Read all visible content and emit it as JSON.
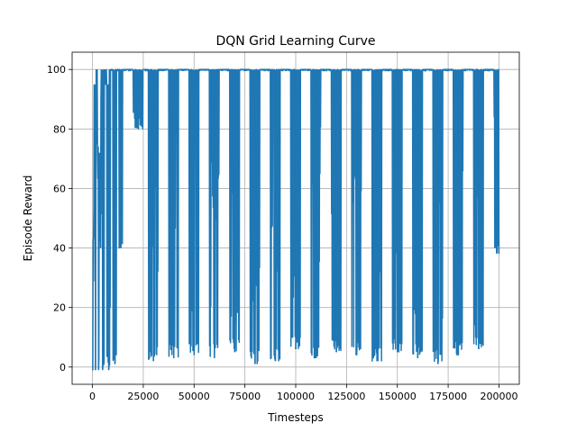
{
  "chart_data": {
    "type": "line",
    "title": "DQN Grid Learning Curve",
    "xlabel": "Timesteps",
    "ylabel": "Episode Reward",
    "xlim": [
      -10000,
      210000
    ],
    "ylim": [
      -5.8,
      105.8
    ],
    "grid": true,
    "x_ticks": [
      0,
      25000,
      50000,
      75000,
      100000,
      125000,
      150000,
      175000,
      200000
    ],
    "x_tick_labels": [
      "0",
      "25000",
      "50000",
      "75000",
      "100000",
      "125000",
      "150000",
      "175000",
      "200000"
    ],
    "y_ticks": [
      0,
      20,
      40,
      60,
      80,
      100
    ],
    "y_tick_labels": [
      "0",
      "20",
      "40",
      "60",
      "80",
      "100"
    ],
    "series": [
      {
        "color": "#1f77b4",
        "x": [
          0,
          500,
          1000,
          1500,
          2000,
          2500,
          3000,
          3500,
          4000,
          4500,
          5000,
          6000,
          7000,
          8000,
          9000,
          10000,
          11000,
          12000,
          13000,
          14000,
          15000,
          16000,
          17000,
          18000,
          19000,
          20000,
          22500,
          25000,
          27500,
          30000,
          32500,
          35000,
          37500,
          40000,
          42500,
          45000,
          47500,
          50000,
          52500,
          55000,
          57500,
          60000,
          62500,
          65000,
          67500,
          70000,
          72500,
          75000,
          77500,
          80000,
          82500,
          85000,
          87500,
          90000,
          92500,
          95000,
          97500,
          100000,
          102500,
          105000,
          107500,
          110000,
          112500,
          115000,
          117500,
          120000,
          122500,
          125000,
          127500,
          130000,
          132500,
          135000,
          137500,
          140000,
          142500,
          145000,
          147500,
          150000,
          152500,
          155000,
          157500,
          160000,
          162500,
          165000,
          167500,
          170000,
          172500,
          175000,
          177500,
          180000,
          182500,
          185000,
          187500,
          190000,
          192500,
          195000,
          197500,
          200000
        ],
        "y": [
          -1,
          43,
          95,
          -1,
          100,
          74,
          -1,
          72,
          40,
          100,
          -1,
          100,
          95,
          -1,
          100,
          100,
          1,
          100,
          100,
          40,
          100,
          100,
          100,
          100,
          100,
          100,
          80,
          100,
          100,
          2,
          100,
          100,
          100,
          3,
          100,
          100,
          100,
          4,
          100,
          100,
          100,
          3,
          100,
          100,
          100,
          5,
          100,
          100,
          100,
          1,
          100,
          100,
          100,
          2,
          100,
          100,
          100,
          6,
          100,
          100,
          100,
          3,
          100,
          100,
          100,
          5,
          100,
          100,
          100,
          4,
          100,
          100,
          100,
          2,
          100,
          100,
          100,
          5,
          100,
          100,
          100,
          3,
          100,
          100,
          100,
          1,
          100,
          100,
          100,
          4,
          100,
          100,
          100,
          6,
          100,
          100,
          100,
          38
        ]
      }
    ]
  }
}
